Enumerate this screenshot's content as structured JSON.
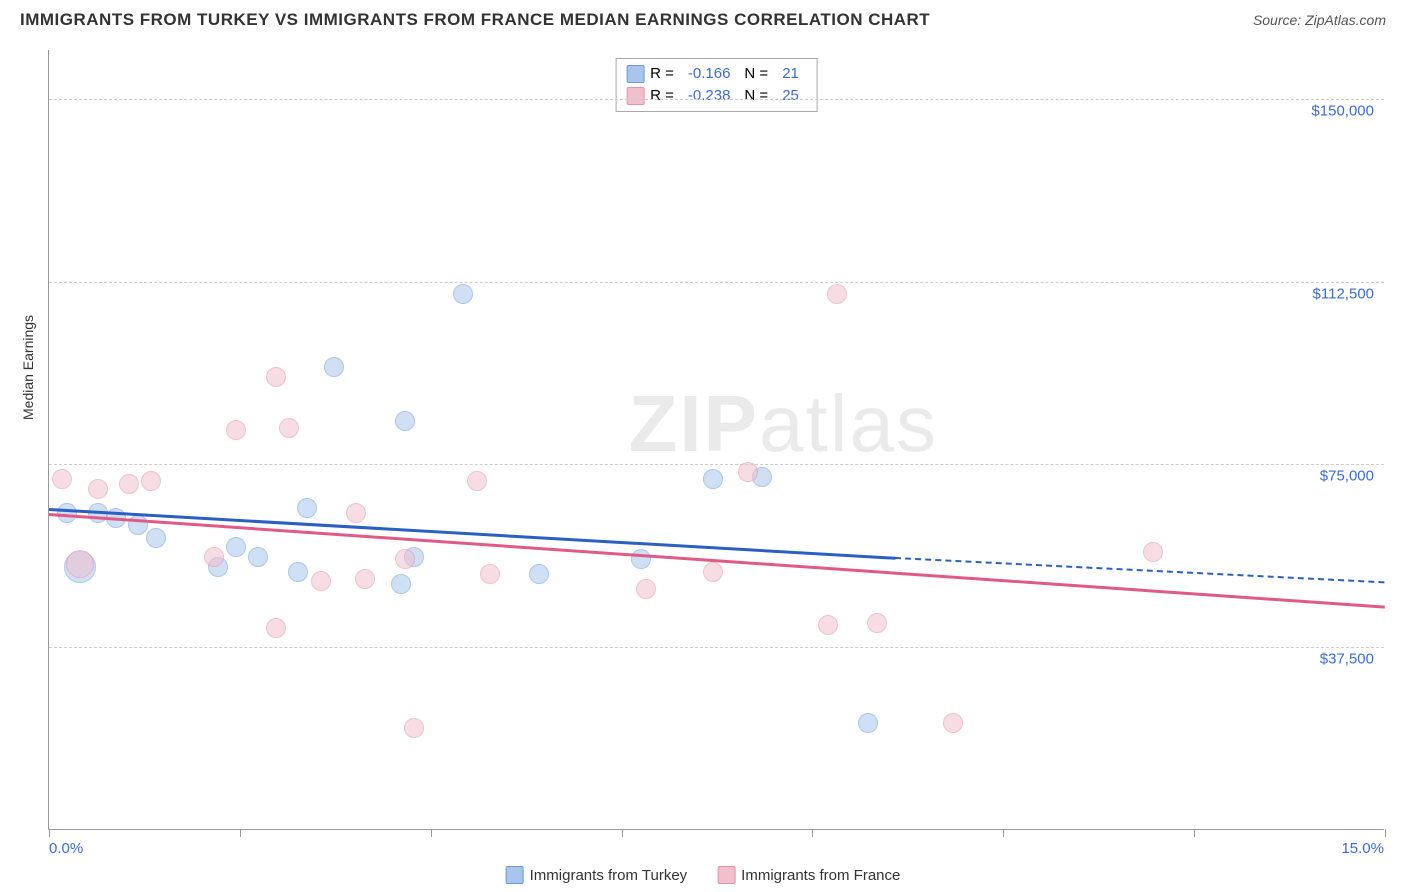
{
  "title": "IMMIGRANTS FROM TURKEY VS IMMIGRANTS FROM FRANCE MEDIAN EARNINGS CORRELATION CHART",
  "source": "Source: ZipAtlas.com",
  "ylabel": "Median Earnings",
  "watermark_bold": "ZIP",
  "watermark_light": "atlas",
  "chart": {
    "type": "scatter",
    "xlim": [
      0,
      15
    ],
    "ylim": [
      0,
      160000
    ],
    "x_min_label": "0.0%",
    "x_max_label": "15.0%",
    "yticks": [
      {
        "v": 37500,
        "label": "$37,500"
      },
      {
        "v": 75000,
        "label": "$75,000"
      },
      {
        "v": 112500,
        "label": "$112,500"
      },
      {
        "v": 150000,
        "label": "$150,000"
      }
    ],
    "xticks_minor": [
      0,
      2.14,
      4.29,
      6.43,
      8.57,
      10.71,
      12.86,
      15
    ],
    "grid_color": "#cccccc",
    "background_color": "#ffffff",
    "axis_color": "#999999",
    "label_color": "#3b6bd6",
    "title_fontsize": 17,
    "label_fontsize": 15,
    "point_radius": 10,
    "point_opacity": 0.55
  },
  "series": [
    {
      "name": "Immigrants from Turkey",
      "color_fill": "#a8c5ec",
      "color_stroke": "#6a9bd8",
      "R": "-0.166",
      "N": "21",
      "trend": {
        "x1": 0,
        "y1": 66000,
        "x2": 9.5,
        "y2": 56000,
        "x2_dash": 15,
        "y2_dash": 51000,
        "color": "#2b5fc2"
      },
      "points": [
        {
          "x": 0.2,
          "y": 65000
        },
        {
          "x": 0.35,
          "y": 54000,
          "r": 16
        },
        {
          "x": 0.55,
          "y": 65000
        },
        {
          "x": 0.75,
          "y": 64000
        },
        {
          "x": 1.0,
          "y": 62500
        },
        {
          "x": 1.2,
          "y": 60000
        },
        {
          "x": 1.9,
          "y": 54000
        },
        {
          "x": 2.1,
          "y": 58000
        },
        {
          "x": 2.35,
          "y": 56000
        },
        {
          "x": 2.8,
          "y": 53000
        },
        {
          "x": 2.9,
          "y": 66000
        },
        {
          "x": 3.2,
          "y": 95000
        },
        {
          "x": 3.95,
          "y": 50500
        },
        {
          "x": 4.0,
          "y": 84000
        },
        {
          "x": 4.1,
          "y": 56000
        },
        {
          "x": 4.65,
          "y": 110000
        },
        {
          "x": 5.5,
          "y": 52500
        },
        {
          "x": 6.65,
          "y": 55500
        },
        {
          "x": 7.45,
          "y": 72000
        },
        {
          "x": 8.0,
          "y": 72500
        },
        {
          "x": 9.2,
          "y": 22000
        }
      ]
    },
    {
      "name": "Immigrants from France",
      "color_fill": "#f1c0cd",
      "color_stroke": "#e392ab",
      "R": "-0.238",
      "N": "25",
      "trend": {
        "x1": 0,
        "y1": 65000,
        "x2": 15,
        "y2": 46000,
        "color": "#e05a87"
      },
      "points": [
        {
          "x": 0.15,
          "y": 72000
        },
        {
          "x": 0.35,
          "y": 54500,
          "r": 14
        },
        {
          "x": 0.55,
          "y": 70000
        },
        {
          "x": 0.9,
          "y": 71000
        },
        {
          "x": 1.15,
          "y": 71500
        },
        {
          "x": 1.85,
          "y": 56000
        },
        {
          "x": 2.1,
          "y": 82000
        },
        {
          "x": 2.55,
          "y": 41500
        },
        {
          "x": 2.55,
          "y": 93000
        },
        {
          "x": 2.7,
          "y": 82500
        },
        {
          "x": 3.05,
          "y": 51000
        },
        {
          "x": 3.45,
          "y": 65000
        },
        {
          "x": 3.55,
          "y": 51500
        },
        {
          "x": 4.0,
          "y": 55500
        },
        {
          "x": 4.1,
          "y": 21000
        },
        {
          "x": 4.8,
          "y": 71500
        },
        {
          "x": 4.95,
          "y": 52500
        },
        {
          "x": 6.7,
          "y": 49500
        },
        {
          "x": 7.45,
          "y": 53000
        },
        {
          "x": 7.85,
          "y": 73500
        },
        {
          "x": 8.75,
          "y": 42000
        },
        {
          "x": 8.85,
          "y": 110000
        },
        {
          "x": 9.3,
          "y": 42500
        },
        {
          "x": 10.15,
          "y": 22000
        },
        {
          "x": 12.4,
          "y": 57000
        }
      ]
    }
  ],
  "legend_top": {
    "R_prefix": "R =",
    "N_prefix": "N ="
  },
  "legend_bottom": [
    {
      "label": "Immigrants from Turkey"
    },
    {
      "label": "Immigrants from France"
    }
  ]
}
